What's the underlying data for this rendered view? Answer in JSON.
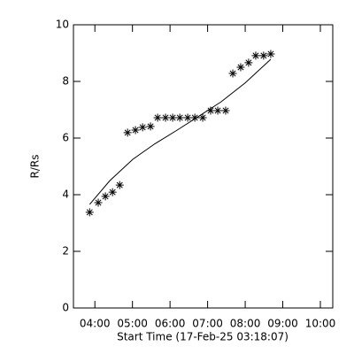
{
  "chart_data": {
    "type": "scatter",
    "xlabel": "Start Time (17-Feb-25 03:18:07)",
    "ylabel": "R/Rs",
    "xlim": [
      3.43,
      10.33
    ],
    "xticks": [
      {
        "value": 4,
        "label": "04:00"
      },
      {
        "value": 5,
        "label": "05:00"
      },
      {
        "value": 6,
        "label": "06:00"
      },
      {
        "value": 7,
        "label": "07:00"
      },
      {
        "value": 8,
        "label": "08:00"
      },
      {
        "value": 9,
        "label": "09:00"
      },
      {
        "value": 10,
        "label": "10:00"
      }
    ],
    "ylim": [
      0,
      10
    ],
    "yticks": [
      0,
      2,
      4,
      6,
      8,
      10
    ],
    "series": [
      {
        "color": "#000000",
        "marker": "asterisk",
        "x": [
          3.86,
          4.09,
          4.28,
          4.47,
          4.66,
          4.87,
          5.08,
          5.27,
          5.48,
          5.67,
          5.88,
          6.07,
          6.26,
          6.47,
          6.66,
          6.87,
          7.08,
          7.27,
          7.48,
          7.67,
          7.88,
          8.09,
          8.28,
          8.49,
          8.68
        ],
        "values": [
          3.38,
          3.72,
          3.94,
          4.09,
          4.34,
          6.19,
          6.28,
          6.38,
          6.41,
          6.72,
          6.72,
          6.72,
          6.72,
          6.72,
          6.72,
          6.72,
          6.97,
          6.97,
          6.97,
          8.28,
          8.5,
          8.66,
          8.91,
          8.91,
          8.97
        ]
      },
      {
        "color": "#000000",
        "marker": "line",
        "x": [
          3.86,
          4.4,
          5.01,
          5.6,
          6.19,
          6.8,
          7.36,
          8.0,
          8.68
        ],
        "values": [
          3.66,
          4.5,
          5.25,
          5.8,
          6.28,
          6.8,
          7.28,
          7.95,
          8.78
        ]
      }
    ]
  }
}
